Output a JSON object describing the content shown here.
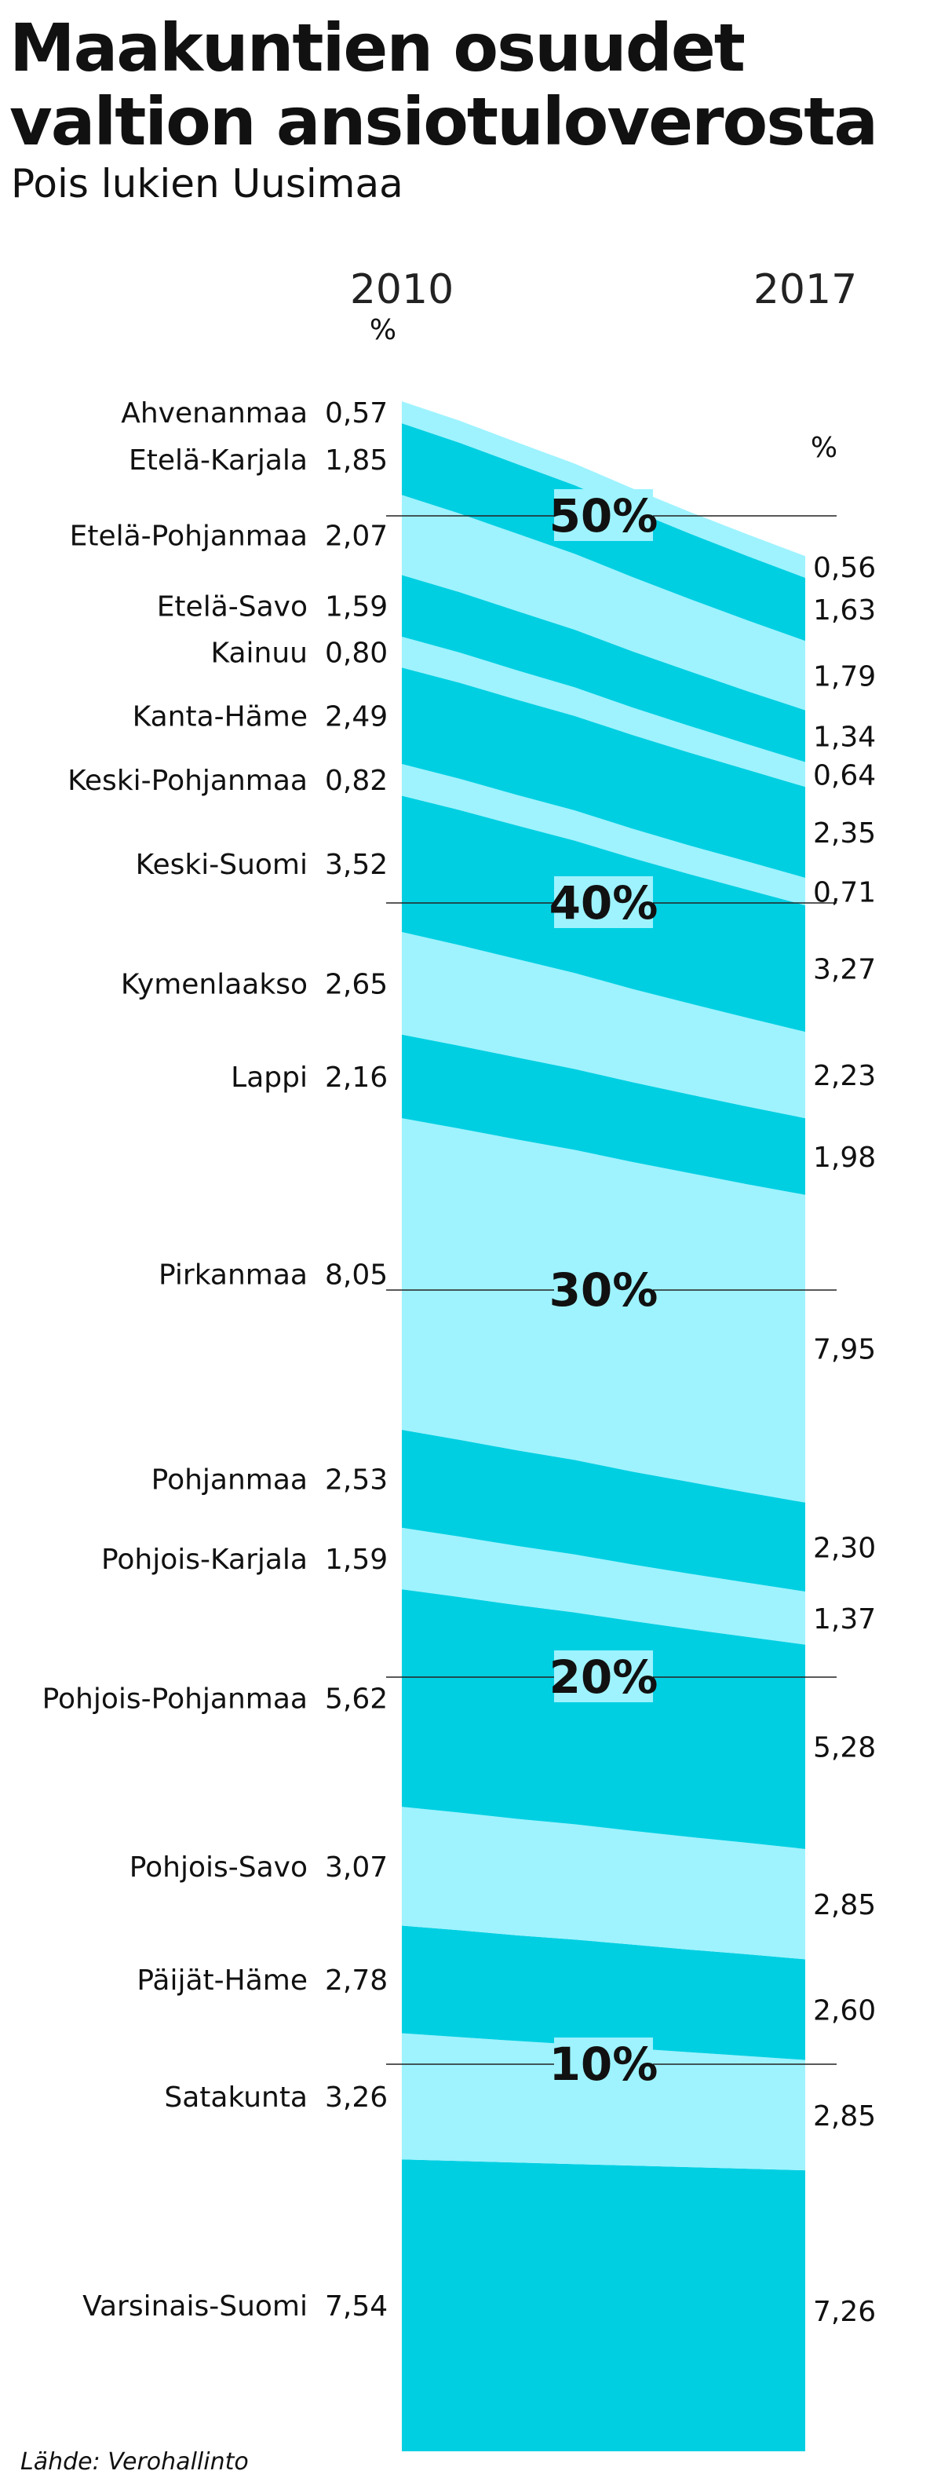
{
  "title_line1": "Maakuntien osuudet",
  "title_line2": "valtion ansiotuloverosta",
  "subtitle": "Pois lukien Uusimaa",
  "source": "Lähde: Verohallinto",
  "colors": {
    "light": "#9ef3ff",
    "dark": "#00cfe2",
    "text": "#111111",
    "gridline": "#222222"
  },
  "chart_data": {
    "type": "area",
    "stacked": true,
    "title": "Maakuntien osuudet valtion ansiotuloverosta",
    "subtitle": "Pois lukien Uusimaa",
    "x_labels": [
      "2010",
      "2017"
    ],
    "x_unit_label_2010": "%",
    "x_unit_label_2017": "%",
    "y_range": [
      0,
      54
    ],
    "y_gridlines": [
      {
        "value": 10,
        "label": "10%"
      },
      {
        "value": 20,
        "label": "20%"
      },
      {
        "value": 30,
        "label": "30%"
      },
      {
        "value": 40,
        "label": "40%"
      },
      {
        "value": 50,
        "label": "50%"
      }
    ],
    "x_steps": [
      0,
      1,
      2,
      3,
      4,
      5,
      6,
      7
    ],
    "series_order_bottom_to_top": [
      "Varsinais-Suomi",
      "Satakunta",
      "Päijät-Häme",
      "Pohjois-Savo",
      "Pohjois-Pohjanmaa",
      "Pohjois-Karjala",
      "Pohjanmaa",
      "Pirkanmaa",
      "Lappi",
      "Kymenlaakso",
      "Keski-Suomi",
      "Keski-Pohjanmaa",
      "Kanta-Häme",
      "Kainuu",
      "Etelä-Savo",
      "Etelä-Pohjanmaa",
      "Etelä-Karjala",
      "Ahvenanmaa"
    ],
    "series": [
      {
        "name": "Ahvenanmaa",
        "v2010": "0,57",
        "v2017": "0,56",
        "values": [
          0.57,
          0.57,
          0.56,
          0.56,
          0.56,
          0.56,
          0.56,
          0.56
        ]
      },
      {
        "name": "Etelä-Karjala",
        "v2010": "1,85",
        "v2017": "1,63",
        "values": [
          1.85,
          1.83,
          1.8,
          1.77,
          1.73,
          1.69,
          1.66,
          1.63
        ]
      },
      {
        "name": "Etelä-Pohjanmaa",
        "v2010": "2,07",
        "v2017": "1,79",
        "values": [
          2.07,
          2.03,
          2.0,
          1.96,
          1.92,
          1.87,
          1.83,
          1.79
        ]
      },
      {
        "name": "Etelä-Savo",
        "v2010": "1,59",
        "v2017": "1,34",
        "values": [
          1.59,
          1.56,
          1.53,
          1.49,
          1.45,
          1.41,
          1.37,
          1.34
        ]
      },
      {
        "name": "Kainuu",
        "v2010": "0,80",
        "v2017": "0,64",
        "values": [
          0.8,
          0.78,
          0.76,
          0.74,
          0.71,
          0.69,
          0.66,
          0.64
        ]
      },
      {
        "name": "Kanta-Häme",
        "v2010": "2,49",
        "v2017": "2,35",
        "values": [
          2.49,
          2.48,
          2.46,
          2.44,
          2.42,
          2.4,
          2.37,
          2.35
        ]
      },
      {
        "name": "Keski-Pohjanmaa",
        "v2010": "0,82",
        "v2017": "0,71",
        "values": [
          0.82,
          0.81,
          0.79,
          0.78,
          0.76,
          0.74,
          0.73,
          0.71
        ]
      },
      {
        "name": "Keski-Suomi",
        "v2010": "3,52",
        "v2017": "3,27",
        "values": [
          3.52,
          3.49,
          3.45,
          3.42,
          3.38,
          3.34,
          3.31,
          3.27
        ]
      },
      {
        "name": "Kymenlaakso",
        "v2010": "2,65",
        "v2017": "2,23",
        "values": [
          2.65,
          2.6,
          2.54,
          2.48,
          2.41,
          2.35,
          2.29,
          2.23
        ]
      },
      {
        "name": "Lappi",
        "v2010": "2,16",
        "v2017": "1,98",
        "values": [
          2.16,
          2.14,
          2.12,
          2.09,
          2.06,
          2.03,
          2.01,
          1.98
        ]
      },
      {
        "name": "Pirkanmaa",
        "v2010": "8,05",
        "v2017": "7,95",
        "values": [
          8.05,
          8.04,
          8.03,
          8.01,
          8.0,
          7.98,
          7.96,
          7.95
        ]
      },
      {
        "name": "Pohjanmaa",
        "v2010": "2,53",
        "v2017": "2,30",
        "values": [
          2.53,
          2.5,
          2.47,
          2.44,
          2.4,
          2.37,
          2.33,
          2.3
        ]
      },
      {
        "name": "Pohjois-Karjala",
        "v2010": "1,59",
        "v2017": "1,37",
        "values": [
          1.59,
          1.56,
          1.53,
          1.5,
          1.46,
          1.43,
          1.4,
          1.37
        ]
      },
      {
        "name": "Pohjois-Pohjanmaa",
        "v2010": "5,62",
        "v2017": "5,28",
        "values": [
          5.62,
          5.57,
          5.52,
          5.47,
          5.42,
          5.37,
          5.32,
          5.28
        ]
      },
      {
        "name": "Pohjois-Savo",
        "v2010": "3,07",
        "v2017": "2,85",
        "values": [
          3.07,
          3.04,
          3.01,
          2.98,
          2.94,
          2.91,
          2.88,
          2.85
        ]
      },
      {
        "name": "Päijät-Häme",
        "v2010": "2,78",
        "v2017": "2,60",
        "values": [
          2.78,
          2.76,
          2.73,
          2.71,
          2.68,
          2.65,
          2.63,
          2.6
        ]
      },
      {
        "name": "Satakunta",
        "v2010": "3,26",
        "v2017": "2,85",
        "values": [
          3.26,
          3.2,
          3.14,
          3.09,
          3.03,
          2.97,
          2.91,
          2.85
        ]
      },
      {
        "name": "Varsinais-Suomi",
        "v2010": "7,54",
        "v2017": "7,26",
        "values": [
          7.54,
          7.5,
          7.46,
          7.42,
          7.38,
          7.34,
          7.3,
          7.26
        ]
      }
    ]
  }
}
